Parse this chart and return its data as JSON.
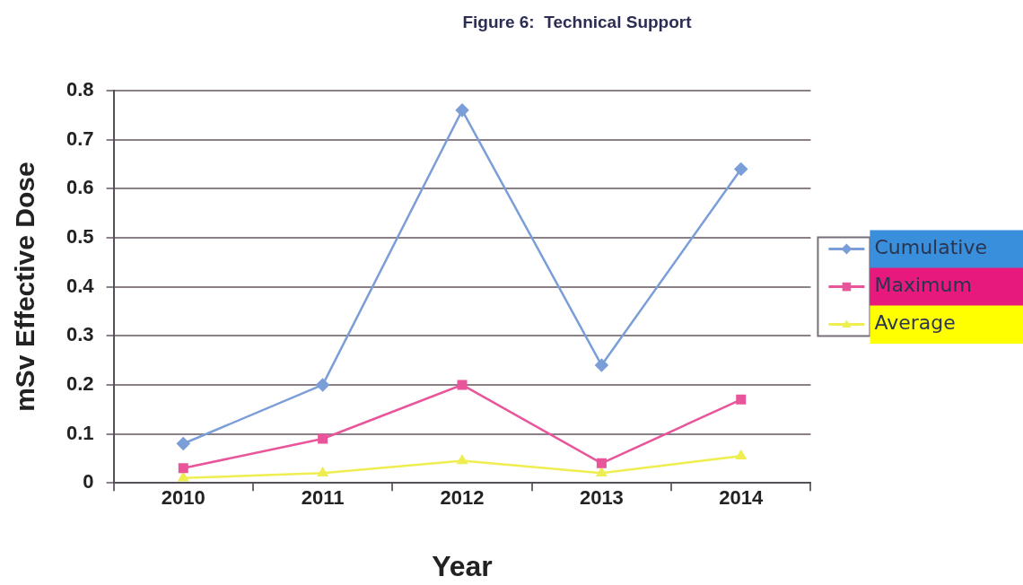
{
  "chart_data": {
    "type": "line",
    "title": "Figure 6:  Technical Support",
    "xlabel": "Year",
    "ylabel": "mSv Effective Dose",
    "categories": [
      "2010",
      "2011",
      "2012",
      "2013",
      "2014"
    ],
    "series": [
      {
        "name": "Cumulative",
        "color": "#7b9ed8",
        "marker": "diamond",
        "values": [
          0.08,
          0.2,
          0.76,
          0.24,
          0.64
        ]
      },
      {
        "name": "Maximum",
        "color": "#e8559a",
        "marker": "square",
        "values": [
          0.03,
          0.09,
          0.2,
          0.04,
          0.17
        ]
      },
      {
        "name": "Average",
        "color": "#eeee50",
        "marker": "triangle",
        "values": [
          0.01,
          0.02,
          0.045,
          0.02,
          0.055
        ]
      }
    ],
    "ylim": [
      0,
      0.8
    ],
    "yticks": [
      0,
      0.1,
      0.2,
      0.3,
      0.4,
      0.5,
      0.6,
      0.7,
      0.8
    ],
    "grid": "y",
    "legend": "right"
  }
}
